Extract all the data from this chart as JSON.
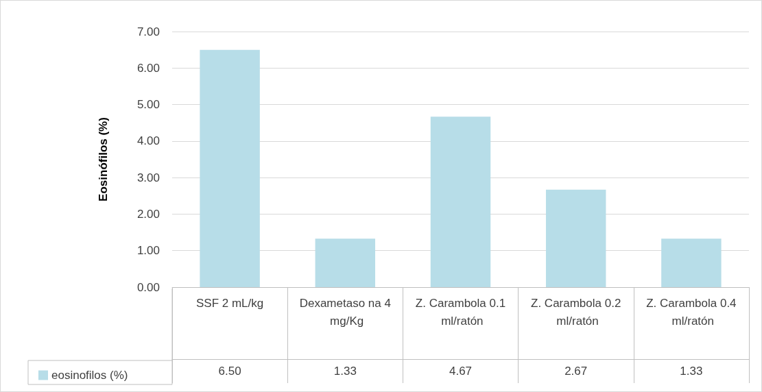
{
  "chart_data": {
    "type": "bar",
    "ylabel": "Eosinófilos (%)",
    "categories": [
      "SSF 2 mL/kg",
      "Dexametaso na 4 mg/Kg",
      "Z. Carambola 0.1 ml/ratón",
      "Z. Carambola 0.2 ml/ratón",
      "Z. Carambola 0.4 ml/ratón"
    ],
    "series": [
      {
        "name": "eosinofilos (%)",
        "color": "#b7dde8",
        "values": [
          6.5,
          1.33,
          4.67,
          2.67,
          1.33
        ],
        "value_labels": [
          "6.50",
          "1.33",
          "4.67",
          "2.67",
          "1.33"
        ]
      }
    ],
    "ylim": [
      0,
      7
    ],
    "yticks": [
      {
        "value": 0,
        "label": "0.00"
      },
      {
        "value": 1,
        "label": "1.00"
      },
      {
        "value": 2,
        "label": "2.00"
      },
      {
        "value": 3,
        "label": "3.00"
      },
      {
        "value": 4,
        "label": "4.00"
      },
      {
        "value": 5,
        "label": "5.00"
      },
      {
        "value": 6,
        "label": "6.00"
      },
      {
        "value": 7,
        "label": "7.00"
      }
    ],
    "grid": "y",
    "legend": "bottom"
  }
}
